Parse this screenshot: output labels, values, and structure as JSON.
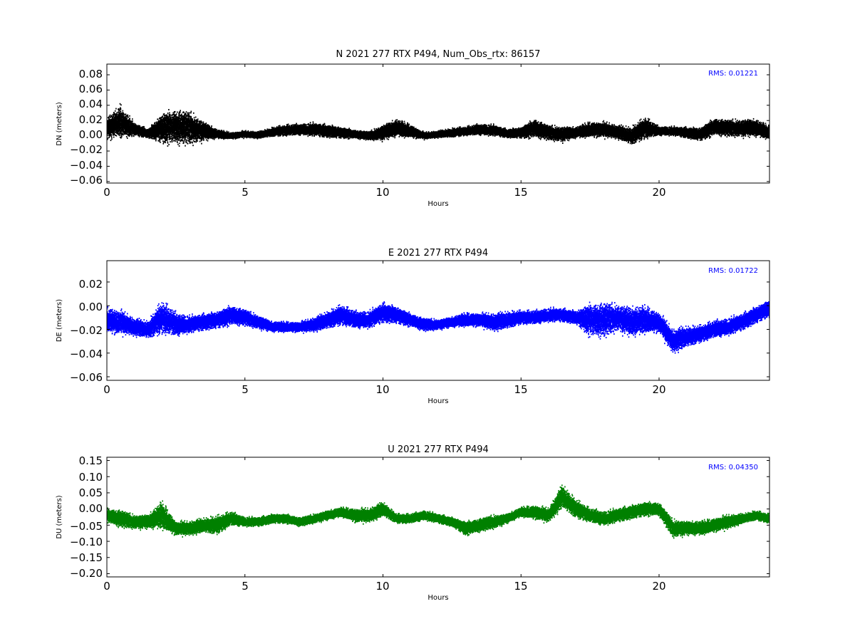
{
  "chart_data": [
    {
      "type": "scatter",
      "title": "N 2021 277 RTX  P494, Num_Obs_rtx: 86157",
      "xlabel": "Hours",
      "ylabel": "DN (meters)",
      "xlim": [
        0,
        24
      ],
      "ylim": [
        -0.062,
        0.094
      ],
      "xticks": [
        "0",
        "5",
        "10",
        "15",
        "20"
      ],
      "yticks": [
        "−0.06",
        "−0.04",
        "−0.02",
        "0.00",
        "0.02",
        "0.04",
        "0.06",
        "0.08"
      ],
      "grid": false,
      "color": "#000000",
      "annotation": "RMS:  0.01221",
      "annotation_color": "#0000ff",
      "series": [
        {
          "x": [
            0,
            0.5,
            1,
            1.5,
            2,
            2.5,
            3,
            3.5,
            4,
            4.5,
            5,
            5.5,
            6,
            6.5,
            7,
            7.5,
            8,
            8.5,
            9,
            9.5,
            10,
            10.5,
            11,
            11.5,
            12,
            12.5,
            13,
            13.5,
            14,
            14.5,
            15,
            15.5,
            16,
            16.5,
            17,
            17.5,
            18,
            18.5,
            19,
            19.5,
            20,
            20.5,
            21,
            21.5,
            22,
            22.5,
            23,
            23.5,
            24
          ],
          "y": [
            0.01,
            0.018,
            0.008,
            0.003,
            0.01,
            0.012,
            0.01,
            0.006,
            0.002,
            0.0,
            0.002,
            0.001,
            0.005,
            0.007,
            0.008,
            0.008,
            0.006,
            0.004,
            0.002,
            0.0,
            0.004,
            0.01,
            0.006,
            0.0,
            0.002,
            0.004,
            0.006,
            0.008,
            0.007,
            0.003,
            0.004,
            0.01,
            0.004,
            0.002,
            0.004,
            0.008,
            0.008,
            0.005,
            0.0,
            0.01,
            0.006,
            0.006,
            0.004,
            0.002,
            0.012,
            0.01,
            0.01,
            0.01,
            0.004
          ],
          "spread": [
            0.02,
            0.03,
            0.012,
            0.008,
            0.028,
            0.034,
            0.032,
            0.018,
            0.008,
            0.006,
            0.006,
            0.006,
            0.008,
            0.01,
            0.01,
            0.012,
            0.012,
            0.01,
            0.008,
            0.008,
            0.014,
            0.016,
            0.012,
            0.006,
            0.006,
            0.008,
            0.008,
            0.01,
            0.01,
            0.008,
            0.01,
            0.018,
            0.014,
            0.014,
            0.01,
            0.014,
            0.014,
            0.012,
            0.016,
            0.02,
            0.008,
            0.008,
            0.01,
            0.012,
            0.016,
            0.016,
            0.016,
            0.016,
            0.012
          ]
        }
      ]
    },
    {
      "type": "scatter",
      "title": "E 2021 277 RTX  P494",
      "xlabel": "Hours",
      "ylabel": "DE (meters)",
      "xlim": [
        0,
        24
      ],
      "ylim": [
        -0.063,
        0.038
      ],
      "xticks": [
        "0",
        "5",
        "10",
        "15",
        "20"
      ],
      "yticks": [
        "−0.06",
        "−0.04",
        "−0.02",
        "0.00",
        "0.02"
      ],
      "grid": false,
      "color": "#0000ff",
      "annotation": "RMS:  0.01722",
      "annotation_color": "#0000ff",
      "series": [
        {
          "x": [
            0,
            0.5,
            1,
            1.5,
            2,
            2.5,
            3,
            3.5,
            4,
            4.5,
            5,
            5.5,
            6,
            6.5,
            7,
            7.5,
            8,
            8.5,
            9,
            9.5,
            10,
            10.5,
            11,
            11.5,
            12,
            12.5,
            13,
            13.5,
            14,
            14.5,
            15,
            15.5,
            16,
            16.5,
            17,
            17.5,
            18,
            18.5,
            19,
            19.5,
            20,
            20.5,
            21,
            21.5,
            22,
            22.5,
            23,
            23.5,
            24
          ],
          "y": [
            -0.012,
            -0.014,
            -0.018,
            -0.02,
            -0.01,
            -0.016,
            -0.016,
            -0.014,
            -0.012,
            -0.008,
            -0.01,
            -0.014,
            -0.018,
            -0.018,
            -0.018,
            -0.016,
            -0.012,
            -0.008,
            -0.012,
            -0.012,
            -0.006,
            -0.008,
            -0.012,
            -0.016,
            -0.016,
            -0.014,
            -0.012,
            -0.012,
            -0.014,
            -0.012,
            -0.01,
            -0.01,
            -0.008,
            -0.008,
            -0.01,
            -0.012,
            -0.012,
            -0.01,
            -0.014,
            -0.012,
            -0.014,
            -0.03,
            -0.026,
            -0.024,
            -0.02,
            -0.018,
            -0.014,
            -0.008,
            -0.002
          ],
          "spread": [
            0.016,
            0.014,
            0.01,
            0.01,
            0.02,
            0.014,
            0.01,
            0.01,
            0.01,
            0.012,
            0.01,
            0.008,
            0.006,
            0.006,
            0.006,
            0.008,
            0.01,
            0.012,
            0.01,
            0.01,
            0.012,
            0.01,
            0.008,
            0.008,
            0.006,
            0.006,
            0.008,
            0.008,
            0.01,
            0.01,
            0.008,
            0.008,
            0.008,
            0.008,
            0.008,
            0.02,
            0.022,
            0.016,
            0.018,
            0.016,
            0.012,
            0.014,
            0.012,
            0.01,
            0.01,
            0.01,
            0.01,
            0.01,
            0.01
          ]
        }
      ]
    },
    {
      "type": "scatter",
      "title": "U 2021 277 RTX  P494",
      "xlabel": "Hours",
      "ylabel": "DU (meters)",
      "xlim": [
        0,
        24
      ],
      "ylim": [
        -0.21,
        0.16
      ],
      "xticks": [
        "0",
        "5",
        "10",
        "15",
        "20"
      ],
      "yticks": [
        "−0.20",
        "−0.15",
        "−0.10",
        "−0.05",
        "0.00",
        "0.05",
        "0.10",
        "0.15"
      ],
      "grid": false,
      "color": "#008000",
      "annotation": "RMS:  0.04350",
      "annotation_color": "#0000ff",
      "series": [
        {
          "x": [
            0,
            0.5,
            1,
            1.5,
            2,
            2.5,
            3,
            3.5,
            4,
            4.5,
            5,
            5.5,
            6,
            6.5,
            7,
            7.5,
            8,
            8.5,
            9,
            9.5,
            10,
            10.5,
            11,
            11.5,
            12,
            12.5,
            13,
            13.5,
            14,
            14.5,
            15,
            15.5,
            16,
            16.5,
            17,
            17.5,
            18,
            18.5,
            19,
            19.5,
            20,
            20.5,
            21,
            21.5,
            22,
            22.5,
            23,
            23.5,
            24
          ],
          "y": [
            -0.02,
            -0.03,
            -0.04,
            -0.04,
            -0.02,
            -0.06,
            -0.06,
            -0.05,
            -0.05,
            -0.03,
            -0.04,
            -0.04,
            -0.03,
            -0.03,
            -0.04,
            -0.03,
            -0.02,
            -0.01,
            -0.02,
            -0.02,
            0.0,
            -0.03,
            -0.03,
            -0.02,
            -0.03,
            -0.04,
            -0.06,
            -0.05,
            -0.04,
            -0.03,
            -0.01,
            -0.01,
            -0.02,
            0.04,
            0.0,
            -0.02,
            -0.03,
            -0.02,
            -0.01,
            0.0,
            0.0,
            -0.06,
            -0.06,
            -0.06,
            -0.05,
            -0.04,
            -0.03,
            -0.02,
            -0.03
          ],
          "spread": [
            0.03,
            0.04,
            0.03,
            0.03,
            0.06,
            0.03,
            0.03,
            0.03,
            0.04,
            0.03,
            0.02,
            0.02,
            0.02,
            0.02,
            0.02,
            0.02,
            0.02,
            0.02,
            0.03,
            0.03,
            0.03,
            0.02,
            0.02,
            0.02,
            0.02,
            0.02,
            0.03,
            0.03,
            0.03,
            0.02,
            0.02,
            0.03,
            0.03,
            0.05,
            0.04,
            0.03,
            0.03,
            0.03,
            0.03,
            0.03,
            0.03,
            0.04,
            0.03,
            0.03,
            0.03,
            0.03,
            0.02,
            0.02,
            0.02
          ]
        }
      ]
    }
  ]
}
